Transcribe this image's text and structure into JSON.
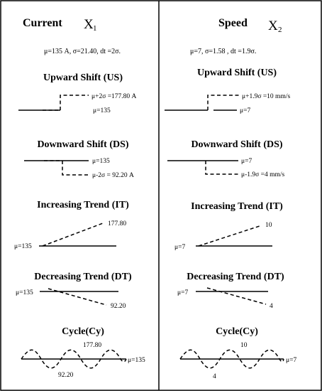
{
  "left": {
    "title": "Current",
    "symbol": "X",
    "subscript": "1",
    "stats": "μ=135 A, σ=21.40, dt =2σ.",
    "us_title": "Upward Shift (US)",
    "us_high": "μ+2σ =177.80 A",
    "us_base": "μ=135",
    "ds_title": "Downward Shift (DS)",
    "ds_base": "μ=135",
    "ds_low": "μ-2σ = 92.20 A",
    "it_title": "Increasing Trend (IT)",
    "it_high": "177.80",
    "it_base": "μ=135",
    "dt_title": "Decreasing Trend (DT)",
    "dt_base": "μ=135",
    "dt_low": "92.20",
    "cy_title": "Cycle(Cy)",
    "cy_high": "177.80",
    "cy_low": "92.20",
    "cy_base": "μ=135"
  },
  "right": {
    "title": "Speed",
    "symbol": "X",
    "subscript": "2",
    "stats": "μ=7,  σ=1.58 , dt =1.9σ.",
    "us_title": "Upward Shift (US)",
    "us_high": "μ+1.9σ =10 mm/s",
    "us_base": "μ=7",
    "ds_title": "Downward Shift (DS)",
    "ds_base": "μ=7",
    "ds_low": "μ-1.9σ =4 mm/s",
    "it_title": "Increasing Trend (IT)",
    "it_high": "10",
    "it_base": "μ=7",
    "dt_title": "Decreasing Trend (DT)",
    "dt_base": "μ=7",
    "dt_low": "4",
    "cy_title": "Cycle(Cy)",
    "cy_high": "10",
    "cy_low": "4",
    "cy_base": "μ=7"
  }
}
